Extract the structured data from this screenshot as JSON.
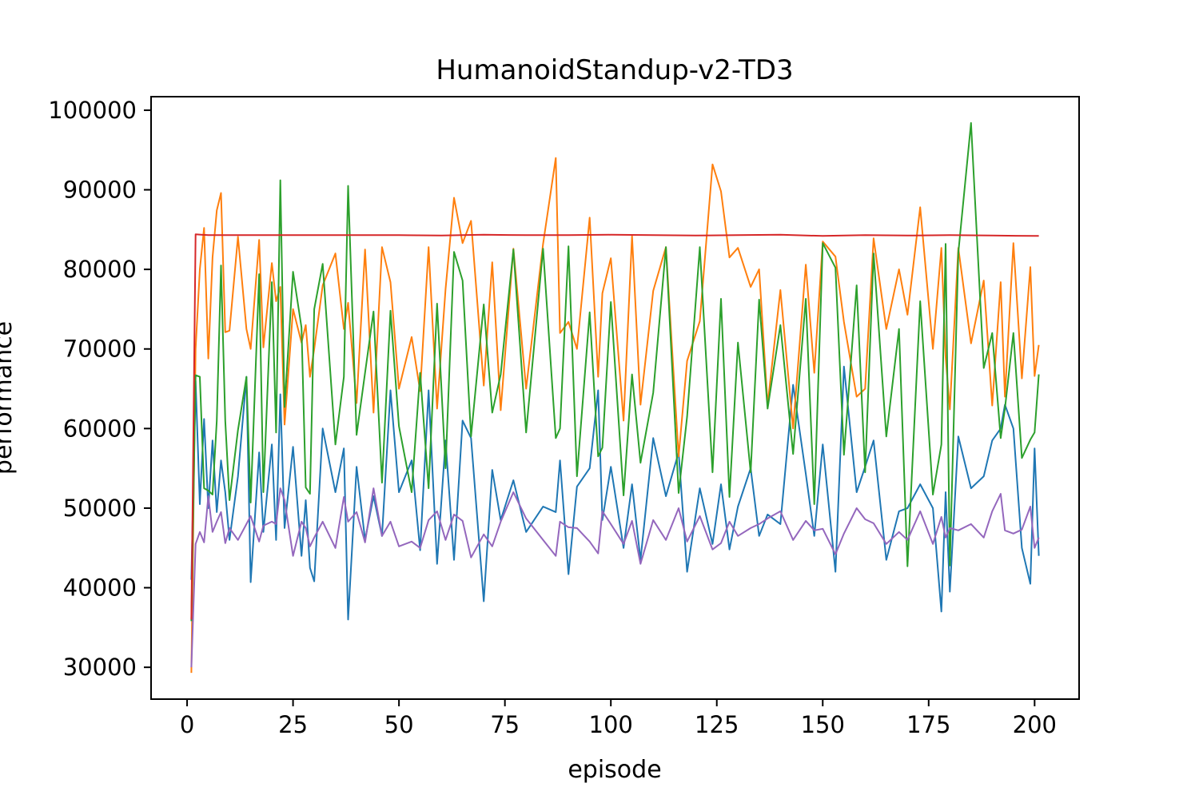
{
  "chart_data": {
    "type": "line",
    "title": "HumanoidStandup-v2-TD3",
    "xlabel": "episode",
    "ylabel": "performance",
    "xlim": [
      -8.5,
      210.5
    ],
    "ylim": [
      26000,
      101700
    ],
    "xticks": [
      0,
      25,
      50,
      75,
      100,
      125,
      150,
      175,
      200
    ],
    "yticks": [
      30000,
      40000,
      50000,
      60000,
      70000,
      80000,
      90000,
      100000
    ],
    "grid": false,
    "legend": "none",
    "series": [
      {
        "color": "#1f77b4",
        "x": [
          1,
          2,
          3,
          4,
          5,
          6,
          7,
          8,
          9,
          10,
          12,
          14,
          15,
          17,
          18,
          20,
          21,
          22,
          23,
          25,
          27,
          28,
          29,
          30,
          32,
          35,
          37,
          38,
          40,
          42,
          44,
          46,
          48,
          50,
          53,
          55,
          57,
          59,
          61,
          63,
          65,
          67,
          70,
          72,
          74,
          77,
          80,
          84,
          87,
          88,
          90,
          92,
          95,
          97,
          98,
          100,
          103,
          105,
          107,
          110,
          113,
          116,
          118,
          121,
          124,
          126,
          128,
          130,
          133,
          135,
          137,
          140,
          143,
          146,
          148,
          150,
          153,
          155,
          158,
          160,
          162,
          165,
          168,
          170,
          173,
          176,
          178,
          179,
          180,
          182,
          185,
          188,
          190,
          192,
          193,
          195,
          197,
          199,
          200,
          201
        ],
        "y": [
          41000,
          66000,
          50500,
          61200,
          50000,
          58500,
          49500,
          56000,
          52000,
          46000,
          54000,
          66500,
          40700,
          57000,
          47000,
          58000,
          46000,
          64300,
          47500,
          57700,
          44000,
          51000,
          42500,
          40800,
          60000,
          52000,
          57500,
          36000,
          55200,
          46000,
          51500,
          46500,
          64800,
          52000,
          56000,
          44700,
          64800,
          43000,
          58500,
          43500,
          61000,
          58800,
          38300,
          54800,
          48500,
          53500,
          47000,
          50200,
          49500,
          56000,
          41700,
          52700,
          55000,
          64800,
          48500,
          55200,
          45000,
          53000,
          43500,
          58800,
          51500,
          57000,
          42000,
          52500,
          45500,
          53000,
          44800,
          50200,
          55000,
          46500,
          49200,
          48000,
          65500,
          54300,
          46500,
          58000,
          42000,
          67800,
          52000,
          55200,
          58500,
          43500,
          49600,
          50000,
          53000,
          50000,
          37000,
          52000,
          39500,
          59000,
          52500,
          54000,
          58500,
          60000,
          63000,
          60000,
          45000,
          40500,
          57500,
          44000
        ]
      },
      {
        "color": "#ff7f0e",
        "x": [
          1,
          2,
          3,
          4,
          5,
          6,
          7,
          8,
          9,
          10,
          12,
          14,
          15,
          17,
          18,
          20,
          21,
          22,
          23,
          25,
          27,
          28,
          29,
          30,
          32,
          35,
          37,
          38,
          40,
          42,
          44,
          46,
          48,
          50,
          53,
          55,
          57,
          59,
          61,
          63,
          65,
          67,
          70,
          72,
          74,
          77,
          80,
          84,
          87,
          88,
          90,
          92,
          95,
          97,
          98,
          100,
          103,
          105,
          107,
          110,
          113,
          116,
          118,
          121,
          124,
          126,
          128,
          130,
          133,
          135,
          137,
          140,
          143,
          146,
          148,
          150,
          153,
          155,
          158,
          160,
          162,
          165,
          168,
          170,
          173,
          176,
          178,
          179,
          180,
          182,
          185,
          188,
          190,
          192,
          193,
          195,
          197,
          199,
          200,
          201
        ],
        "y": [
          29300,
          70000,
          80000,
          85200,
          68800,
          81500,
          87400,
          89600,
          72100,
          72300,
          84100,
          72500,
          70000,
          83700,
          70200,
          80800,
          76000,
          77800,
          60500,
          75000,
          70800,
          73000,
          66500,
          70000,
          78000,
          82000,
          72500,
          75800,
          63200,
          82500,
          62000,
          82800,
          78400,
          65000,
          71500,
          64700,
          82800,
          62500,
          77500,
          89000,
          83300,
          86100,
          65400,
          80900,
          62300,
          82600,
          65000,
          83200,
          94000,
          72000,
          73400,
          70000,
          86500,
          66500,
          77000,
          81400,
          61000,
          84200,
          63000,
          77300,
          82800,
          56500,
          68500,
          73500,
          93200,
          89800,
          81500,
          82700,
          77800,
          80000,
          63000,
          77400,
          60000,
          80600,
          67000,
          83500,
          81600,
          73400,
          64000,
          65000,
          83900,
          72500,
          80000,
          74300,
          87800,
          70000,
          82700,
          69000,
          62400,
          82700,
          70700,
          78600,
          62900,
          78400,
          64000,
          83300,
          66300,
          80300,
          66600,
          70500
        ]
      },
      {
        "color": "#2ca02c",
        "x": [
          1,
          2,
          3,
          4,
          5,
          6,
          7,
          8,
          9,
          10,
          12,
          14,
          15,
          17,
          18,
          20,
          21,
          22,
          23,
          25,
          27,
          28,
          29,
          30,
          32,
          35,
          37,
          38,
          40,
          42,
          44,
          46,
          48,
          50,
          53,
          55,
          57,
          59,
          61,
          63,
          65,
          67,
          70,
          72,
          74,
          77,
          80,
          84,
          87,
          88,
          90,
          92,
          95,
          97,
          98,
          100,
          103,
          105,
          107,
          110,
          113,
          116,
          118,
          121,
          124,
          126,
          128,
          130,
          133,
          135,
          137,
          140,
          143,
          146,
          148,
          150,
          153,
          155,
          158,
          160,
          162,
          165,
          168,
          170,
          173,
          176,
          178,
          179,
          180,
          182,
          185,
          188,
          190,
          192,
          193,
          195,
          197,
          199,
          200,
          201
        ],
        "y": [
          35800,
          66700,
          66500,
          52500,
          52200,
          51700,
          61000,
          80500,
          61000,
          51000,
          59800,
          66500,
          50700,
          79400,
          52000,
          78400,
          59500,
          91200,
          62700,
          79700,
          72700,
          52600,
          51800,
          75000,
          80700,
          58000,
          66500,
          90500,
          59200,
          67000,
          74700,
          53200,
          74800,
          60300,
          52000,
          67000,
          52500,
          75700,
          55000,
          82200,
          78600,
          59000,
          75600,
          62000,
          66800,
          82500,
          59500,
          82600,
          58800,
          60000,
          82900,
          54000,
          74600,
          56500,
          57600,
          75900,
          51600,
          66800,
          55700,
          64500,
          82800,
          51900,
          61500,
          82800,
          54500,
          76300,
          51400,
          70800,
          54500,
          76200,
          62500,
          73000,
          56800,
          76300,
          50500,
          83300,
          80200,
          56700,
          78000,
          54500,
          82000,
          59000,
          72500,
          42700,
          76000,
          51700,
          58000,
          83200,
          42800,
          82100,
          98400,
          67600,
          72000,
          58800,
          62500,
          72000,
          56300,
          58600,
          59500,
          66800
        ]
      },
      {
        "color": "#d62728",
        "x": [
          1,
          2,
          5,
          10,
          20,
          30,
          40,
          50,
          60,
          70,
          80,
          90,
          100,
          110,
          120,
          130,
          140,
          150,
          160,
          170,
          180,
          190,
          200,
          201
        ],
        "y": [
          36000,
          84400,
          84300,
          84300,
          84300,
          84300,
          84300,
          84300,
          84250,
          84350,
          84300,
          84300,
          84350,
          84300,
          84250,
          84300,
          84350,
          84200,
          84300,
          84250,
          84300,
          84250,
          84200,
          84200
        ]
      },
      {
        "color": "#9467bd",
        "x": [
          1,
          2,
          3,
          4,
          5,
          6,
          7,
          8,
          9,
          10,
          12,
          14,
          15,
          17,
          18,
          20,
          21,
          22,
          23,
          25,
          27,
          28,
          29,
          30,
          32,
          35,
          37,
          38,
          40,
          42,
          44,
          46,
          48,
          50,
          53,
          55,
          57,
          59,
          61,
          63,
          65,
          67,
          70,
          72,
          74,
          77,
          80,
          84,
          87,
          88,
          90,
          92,
          95,
          97,
          98,
          100,
          103,
          105,
          107,
          110,
          113,
          116,
          118,
          121,
          124,
          126,
          128,
          130,
          133,
          135,
          137,
          140,
          143,
          146,
          148,
          150,
          153,
          155,
          158,
          160,
          162,
          165,
          168,
          170,
          173,
          176,
          178,
          179,
          180,
          182,
          185,
          188,
          190,
          192,
          193,
          195,
          197,
          199,
          200,
          201
        ],
        "y": [
          30000,
          45500,
          47000,
          45700,
          51500,
          47000,
          48300,
          49500,
          45600,
          47500,
          46000,
          48000,
          49000,
          45800,
          47800,
          48300,
          48000,
          52500,
          51000,
          44000,
          48300,
          47500,
          45200,
          46300,
          48300,
          45000,
          51400,
          48300,
          49500,
          45700,
          52500,
          46500,
          48300,
          45200,
          45800,
          45000,
          48500,
          49600,
          46000,
          49200,
          48400,
          43800,
          46700,
          45200,
          48300,
          52000,
          48700,
          46000,
          44000,
          48300,
          47600,
          47500,
          45800,
          44300,
          49600,
          48000,
          45500,
          48400,
          43000,
          48500,
          46000,
          50000,
          45800,
          49000,
          44800,
          45600,
          48300,
          46500,
          47500,
          48000,
          48700,
          49600,
          46000,
          48400,
          47200,
          47400,
          44200,
          46800,
          50000,
          48600,
          48100,
          45500,
          47000,
          46000,
          49600,
          45500,
          48900,
          46300,
          47500,
          47200,
          48000,
          46300,
          49600,
          51800,
          47200,
          46800,
          47300,
          50200,
          45000,
          46300
        ]
      }
    ]
  }
}
